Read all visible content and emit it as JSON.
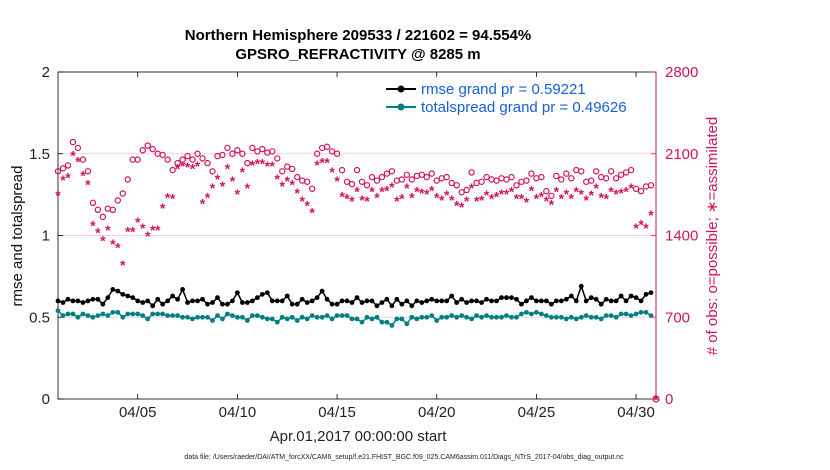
{
  "chart_data": {
    "type": "line",
    "title_line1": "Northern Hemisphere 209533 / 221602 = 94.554%",
    "title_line2": "GPSRO_REFRACTIVITY @ 8285 m",
    "xlabel": "Apr.01,2017 00:00:00 start",
    "ylabel_left": "rmse and totalspread",
    "ylabel_right": "# of obs: o=possible; ∗=assimilated",
    "footer": "data file: /Users/raeder/DAI/ATM_forcXX/CAM6_setup/f.e21.FHIST_BGC.f09_025.CAM6assim.011/Diags_NTrS_2017-04/obs_diag_output.nc",
    "x_range": [
      1.0,
      31.0
    ],
    "x_ticks": [
      5,
      10,
      15,
      20,
      25,
      30
    ],
    "x_tick_labels": [
      "04/05",
      "04/10",
      "04/15",
      "04/20",
      "04/25",
      "04/30"
    ],
    "y_left_range": [
      0,
      2
    ],
    "y_left_ticks": [
      0,
      0.5,
      1,
      1.5,
      2
    ],
    "y_left_tick_labels": [
      "0",
      "0.5",
      "1",
      "1.5",
      "2"
    ],
    "y_right_range": [
      0,
      2800
    ],
    "y_right_ticks": [
      0,
      700,
      1400,
      2100,
      2800
    ],
    "y_right_tick_labels": [
      "0",
      "700",
      "1400",
      "2100",
      "2800"
    ],
    "colors": {
      "rmse": "#000000",
      "totalspread": "#008080",
      "obs": "#d0145a",
      "legend_text": "#1560d8",
      "grid": "#f2c6d4"
    },
    "series": [
      {
        "name": "rmse",
        "label": "rmse grand pr = 0.59221",
        "axis": "left",
        "x": [
          1.0,
          1.25,
          1.5,
          1.75,
          2.0,
          2.25,
          2.5,
          2.75,
          3.0,
          3.25,
          3.5,
          3.75,
          4.0,
          4.25,
          4.5,
          4.75,
          5.0,
          5.25,
          5.5,
          5.75,
          6.0,
          6.25,
          6.5,
          6.75,
          7.0,
          7.25,
          7.5,
          7.75,
          8.0,
          8.25,
          8.5,
          8.75,
          9.0,
          9.25,
          9.5,
          9.75,
          10.0,
          10.25,
          10.5,
          10.75,
          11.0,
          11.25,
          11.5,
          11.75,
          12.0,
          12.25,
          12.5,
          12.75,
          13.0,
          13.25,
          13.5,
          13.75,
          14.0,
          14.25,
          14.5,
          14.75,
          15.0,
          15.25,
          15.5,
          15.75,
          16.0,
          16.25,
          16.5,
          16.75,
          17.0,
          17.25,
          17.5,
          17.75,
          18.0,
          18.25,
          18.5,
          18.75,
          19.0,
          19.25,
          19.5,
          19.75,
          20.0,
          20.25,
          20.5,
          20.75,
          21.0,
          21.25,
          21.5,
          21.75,
          22.0,
          22.25,
          22.5,
          22.75,
          23.0,
          23.25,
          23.5,
          23.75,
          24.0,
          24.25,
          24.5,
          24.75,
          25.0,
          25.25,
          25.5,
          25.75,
          26.0,
          26.25,
          26.5,
          26.75,
          27.0,
          27.25,
          27.5,
          27.75,
          28.0,
          28.25,
          28.5,
          28.75,
          29.0,
          29.25,
          29.5,
          29.75,
          30.0,
          30.25,
          30.5,
          30.75
        ],
        "values": [
          0.6,
          0.59,
          0.61,
          0.6,
          0.6,
          0.59,
          0.6,
          0.61,
          0.61,
          0.58,
          0.62,
          0.67,
          0.66,
          0.64,
          0.63,
          0.62,
          0.6,
          0.59,
          0.6,
          0.57,
          0.61,
          0.58,
          0.6,
          0.63,
          0.61,
          0.67,
          0.59,
          0.6,
          0.6,
          0.61,
          0.58,
          0.59,
          0.62,
          0.58,
          0.58,
          0.6,
          0.65,
          0.59,
          0.59,
          0.6,
          0.62,
          0.64,
          0.65,
          0.6,
          0.6,
          0.6,
          0.63,
          0.58,
          0.58,
          0.61,
          0.59,
          0.6,
          0.62,
          0.66,
          0.61,
          0.58,
          0.58,
          0.6,
          0.6,
          0.59,
          0.62,
          0.59,
          0.6,
          0.6,
          0.57,
          0.59,
          0.61,
          0.57,
          0.61,
          0.58,
          0.6,
          0.57,
          0.6,
          0.59,
          0.6,
          0.61,
          0.6,
          0.6,
          0.6,
          0.63,
          0.59,
          0.61,
          0.59,
          0.6,
          0.6,
          0.59,
          0.61,
          0.6,
          0.6,
          0.62,
          0.62,
          0.62,
          0.61,
          0.58,
          0.6,
          0.62,
          0.6,
          0.6,
          0.6,
          0.58,
          0.6,
          0.6,
          0.61,
          0.63,
          0.6,
          0.69,
          0.6,
          0.62,
          0.61,
          0.58,
          0.61,
          0.6,
          0.6,
          0.63,
          0.6,
          0.63,
          0.62,
          0.6,
          0.64,
          0.65
        ]
      },
      {
        "name": "totalspread",
        "label": "totalspread grand pr = 0.49626",
        "axis": "left",
        "x": [
          1.0,
          1.25,
          1.5,
          1.75,
          2.0,
          2.25,
          2.5,
          2.75,
          3.0,
          3.25,
          3.5,
          3.75,
          4.0,
          4.25,
          4.5,
          4.75,
          5.0,
          5.25,
          5.5,
          5.75,
          6.0,
          6.25,
          6.5,
          6.75,
          7.0,
          7.25,
          7.5,
          7.75,
          8.0,
          8.25,
          8.5,
          8.75,
          9.0,
          9.25,
          9.5,
          9.75,
          10.0,
          10.25,
          10.5,
          10.75,
          11.0,
          11.25,
          11.5,
          11.75,
          12.0,
          12.25,
          12.5,
          12.75,
          13.0,
          13.25,
          13.5,
          13.75,
          14.0,
          14.25,
          14.5,
          14.75,
          15.0,
          15.25,
          15.5,
          15.75,
          16.0,
          16.25,
          16.5,
          16.75,
          17.0,
          17.25,
          17.5,
          17.75,
          18.0,
          18.25,
          18.5,
          18.75,
          19.0,
          19.25,
          19.5,
          19.75,
          20.0,
          20.25,
          20.5,
          20.75,
          21.0,
          21.25,
          21.5,
          21.75,
          22.0,
          22.25,
          22.5,
          22.75,
          23.0,
          23.25,
          23.5,
          23.75,
          24.0,
          24.25,
          24.5,
          24.75,
          25.0,
          25.25,
          25.5,
          25.75,
          26.0,
          26.25,
          26.5,
          26.75,
          27.0,
          27.25,
          27.5,
          27.75,
          28.0,
          28.25,
          28.5,
          28.75,
          29.0,
          29.25,
          29.5,
          29.75,
          30.0,
          30.25,
          30.5,
          30.75
        ],
        "values": [
          0.54,
          0.51,
          0.52,
          0.52,
          0.5,
          0.52,
          0.51,
          0.5,
          0.51,
          0.52,
          0.51,
          0.53,
          0.53,
          0.5,
          0.52,
          0.52,
          0.52,
          0.51,
          0.49,
          0.52,
          0.52,
          0.52,
          0.51,
          0.51,
          0.51,
          0.5,
          0.5,
          0.49,
          0.5,
          0.5,
          0.5,
          0.48,
          0.51,
          0.49,
          0.52,
          0.51,
          0.5,
          0.5,
          0.48,
          0.51,
          0.51,
          0.5,
          0.49,
          0.49,
          0.47,
          0.5,
          0.49,
          0.5,
          0.48,
          0.5,
          0.49,
          0.51,
          0.5,
          0.5,
          0.51,
          0.49,
          0.51,
          0.51,
          0.51,
          0.49,
          0.49,
          0.47,
          0.5,
          0.49,
          0.5,
          0.47,
          0.47,
          0.45,
          0.49,
          0.49,
          0.46,
          0.5,
          0.49,
          0.5,
          0.5,
          0.51,
          0.48,
          0.5,
          0.5,
          0.51,
          0.5,
          0.51,
          0.5,
          0.49,
          0.51,
          0.5,
          0.51,
          0.5,
          0.5,
          0.5,
          0.51,
          0.5,
          0.5,
          0.52,
          0.53,
          0.52,
          0.53,
          0.52,
          0.51,
          0.5,
          0.5,
          0.5,
          0.49,
          0.5,
          0.49,
          0.5,
          0.51,
          0.5,
          0.5,
          0.49,
          0.51,
          0.51,
          0.5,
          0.52,
          0.52,
          0.51,
          0.52,
          0.53,
          0.53,
          0.51
        ]
      },
      {
        "name": "obs_possible",
        "label": "o = possible",
        "axis": "right",
        "marker": "circle",
        "x": [
          1.0,
          1.25,
          1.5,
          1.75,
          2.0,
          2.25,
          2.5,
          2.75,
          3.0,
          3.25,
          3.5,
          3.75,
          4.0,
          4.25,
          4.5,
          4.75,
          5.0,
          5.25,
          5.5,
          5.75,
          6.0,
          6.25,
          6.5,
          6.75,
          7.0,
          7.25,
          7.5,
          7.75,
          8.0,
          8.25,
          8.5,
          8.75,
          9.0,
          9.25,
          9.5,
          9.75,
          10.0,
          10.25,
          10.5,
          10.75,
          11.0,
          11.25,
          11.5,
          11.75,
          12.0,
          12.25,
          12.5,
          12.75,
          13.0,
          13.25,
          13.5,
          13.75,
          14.0,
          14.25,
          14.5,
          14.75,
          15.0,
          15.25,
          15.5,
          15.75,
          16.0,
          16.25,
          16.5,
          16.75,
          17.0,
          17.25,
          17.5,
          17.75,
          18.0,
          18.25,
          18.5,
          18.75,
          19.0,
          19.25,
          19.5,
          19.75,
          20.0,
          20.25,
          20.5,
          20.75,
          21.0,
          21.25,
          21.5,
          21.75,
          22.0,
          22.25,
          22.5,
          22.75,
          23.0,
          23.25,
          23.5,
          23.75,
          24.0,
          24.25,
          24.5,
          24.75,
          25.0,
          25.25,
          25.5,
          25.75,
          26.0,
          26.25,
          26.5,
          26.75,
          27.0,
          27.25,
          27.5,
          27.75,
          28.0,
          28.25,
          28.5,
          28.75,
          29.0,
          29.25,
          29.5,
          29.75,
          30.0,
          30.25,
          30.5,
          30.75
        ],
        "values": [
          1950,
          1975,
          2000,
          2200,
          2150,
          2050,
          1950,
          1680,
          1620,
          1560,
          1630,
          1620,
          1700,
          1760,
          1880,
          2050,
          2050,
          2130,
          2170,
          2140,
          2100,
          2090,
          2050,
          1960,
          2020,
          2050,
          2080,
          2050,
          2100,
          2060,
          2020,
          1950,
          2080,
          2090,
          2150,
          2100,
          2130,
          2100,
          2020,
          2150,
          2120,
          2140,
          2110,
          2120,
          2060,
          1950,
          1990,
          1970,
          1900,
          1870,
          1860,
          1800,
          2100,
          2150,
          2160,
          2120,
          2100,
          1960,
          1860,
          1840,
          1960,
          1860,
          1830,
          1900,
          1870,
          1900,
          1930,
          1950,
          1870,
          1880,
          1920,
          1880,
          1910,
          1920,
          1900,
          1930,
          1870,
          1890,
          1900,
          1850,
          1830,
          1770,
          1790,
          1940,
          1850,
          1860,
          1900,
          1880,
          1870,
          1890,
          1880,
          1900,
          1830,
          1860,
          1870,
          1930,
          1890,
          1900,
          1780,
          1740,
          1910,
          1880,
          1930,
          1890,
          1960,
          1950,
          1860,
          1870,
          1950,
          1900,
          1890,
          1950,
          1890,
          1920,
          1940,
          1960,
          1800,
          1780,
          1820,
          1830
        ]
      },
      {
        "name": "obs_assimilated",
        "label": "∗ = assimilated",
        "axis": "right",
        "marker": "asterisk",
        "x": [
          1.0,
          1.25,
          1.5,
          1.75,
          2.0,
          2.25,
          2.5,
          2.75,
          3.0,
          3.25,
          3.5,
          3.75,
          4.0,
          4.25,
          4.5,
          4.75,
          5.0,
          5.25,
          5.5,
          5.75,
          6.0,
          6.25,
          6.5,
          6.75,
          7.0,
          7.25,
          7.5,
          7.75,
          8.0,
          8.25,
          8.5,
          8.75,
          9.0,
          9.25,
          9.5,
          9.75,
          10.0,
          10.25,
          10.5,
          10.75,
          11.0,
          11.25,
          11.5,
          11.75,
          12.0,
          12.25,
          12.5,
          12.75,
          13.0,
          13.25,
          13.5,
          13.75,
          14.0,
          14.25,
          14.5,
          14.75,
          15.0,
          15.25,
          15.5,
          15.75,
          16.0,
          16.25,
          16.5,
          16.75,
          17.0,
          17.25,
          17.5,
          17.75,
          18.0,
          18.25,
          18.5,
          18.75,
          19.0,
          19.25,
          19.5,
          19.75,
          20.0,
          20.25,
          20.5,
          20.75,
          21.0,
          21.25,
          21.5,
          21.75,
          22.0,
          22.25,
          22.5,
          22.75,
          23.0,
          23.25,
          23.5,
          23.75,
          24.0,
          24.25,
          24.5,
          24.75,
          25.0,
          25.25,
          25.5,
          25.75,
          26.0,
          26.25,
          26.5,
          26.75,
          27.0,
          27.25,
          27.5,
          27.75,
          28.0,
          28.25,
          28.5,
          28.75,
          29.0,
          29.25,
          29.5,
          29.75,
          30.0,
          30.25,
          30.5,
          30.75
        ],
        "values": [
          1750,
          1880,
          1900,
          2090,
          2040,
          1920,
          1840,
          1490,
          1430,
          1360,
          1450,
          1330,
          1300,
          1150,
          1440,
          1440,
          1520,
          1470,
          1400,
          1450,
          1450,
          1640,
          1730,
          1720,
          1980,
          2000,
          1990,
          1980,
          2000,
          1680,
          1730,
          1810,
          1890,
          1830,
          1980,
          1870,
          1760,
          1950,
          1810,
          2010,
          2020,
          2020,
          2000,
          2000,
          1890,
          1830,
          1870,
          1840,
          1770,
          1700,
          1660,
          1600,
          2010,
          2030,
          2030,
          1950,
          1870,
          1740,
          1720,
          1700,
          1780,
          1710,
          1700,
          1780,
          1730,
          1780,
          1790,
          1820,
          1700,
          1720,
          1810,
          1730,
          1780,
          1770,
          1760,
          1790,
          1730,
          1710,
          1750,
          1710,
          1660,
          1650,
          1700,
          1810,
          1700,
          1710,
          1750,
          1720,
          1740,
          1760,
          1760,
          1780,
          1720,
          1720,
          1690,
          1790,
          1720,
          1740,
          1700,
          1670,
          1780,
          1720,
          1760,
          1720,
          1780,
          1760,
          1710,
          1750,
          1810,
          1730,
          1720,
          1780,
          1760,
          1770,
          1780,
          1810,
          1470,
          1500,
          1470,
          1580
        ]
      }
    ]
  }
}
